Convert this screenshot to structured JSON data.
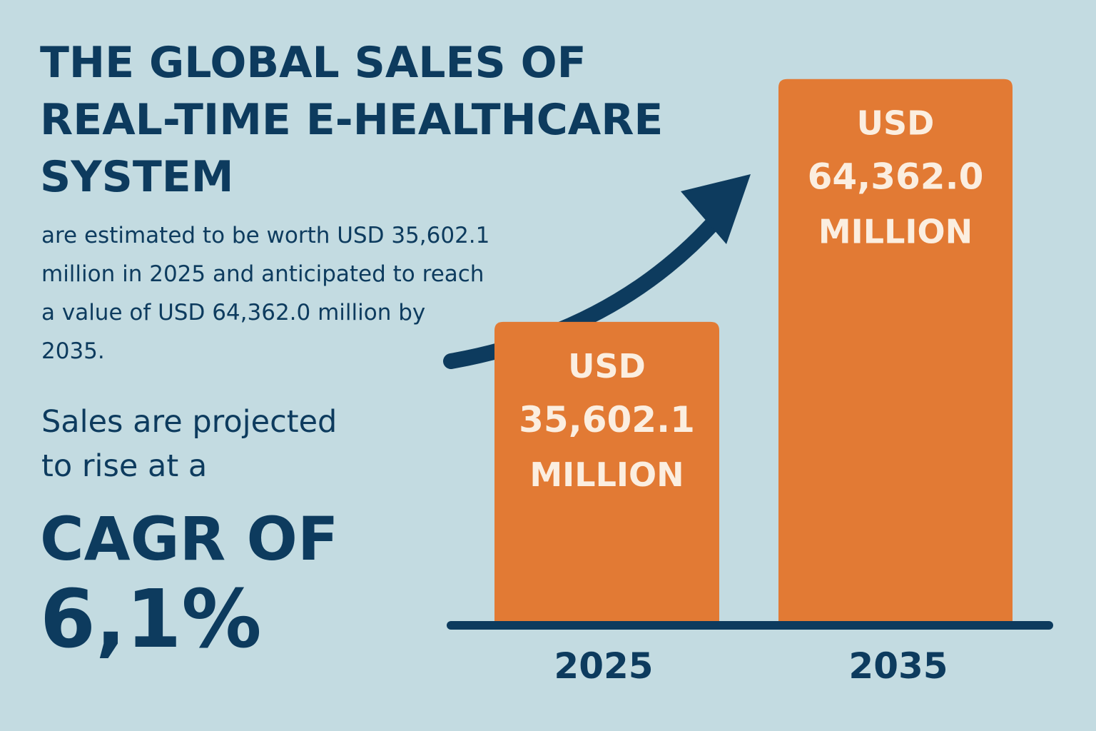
{
  "title_lines": [
    "THE GLOBAL SALES OF",
    "REAL-TIME E-HEALTHCARE",
    "SYSTEM"
  ],
  "subtitle_lines": [
    "are estimated to be worth USD 35,602.1",
    "million in 2025 and anticipated to reach",
    "a value of USD 64,362.0 million by",
    "2035."
  ],
  "projection_lines": [
    "Sales are projected",
    "to rise at a"
  ],
  "cagr_label": "CAGR OF",
  "cagr_value": "6,1%",
  "colors": {
    "background": "#c3dbe1",
    "text": "#0d3b5e",
    "bar": "#e27a34",
    "bar_label": "#fbeee0",
    "arrow": "#0d3b5e"
  },
  "chart_data": {
    "type": "bar",
    "title": "",
    "xlabel": "",
    "ylabel": "",
    "categories": [
      "2025",
      "2035"
    ],
    "values": [
      35602.1,
      64362.0
    ],
    "unit": "USD million",
    "data_labels": [
      [
        "USD",
        "35,602.1",
        "MILLION"
      ],
      [
        "USD",
        "64,362.0",
        "MILLION"
      ]
    ],
    "ylim": [
      0,
      70000
    ],
    "grid": false,
    "legend": "none",
    "annotation": "upward-trend-arrow"
  }
}
